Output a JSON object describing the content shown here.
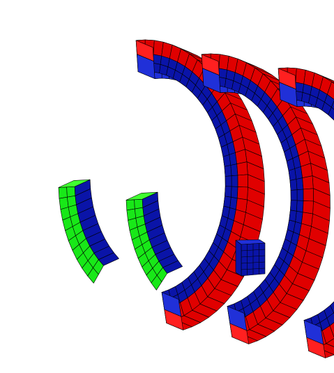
{
  "colors": {
    "background": "#ffffff",
    "red_front": "#e00000",
    "red_top": "#ff2020",
    "blue_front": "#0a14a8",
    "blue_top": "#2030d8",
    "green_front": "#18e818",
    "green_top": "#40ff30",
    "mesh_line": "#000000"
  },
  "parts": [
    {
      "name": "coil-1",
      "type": "curved-coil",
      "layers": [
        "red",
        "blue"
      ]
    },
    {
      "name": "coil-2",
      "type": "curved-coil",
      "layers": [
        "red",
        "blue"
      ]
    },
    {
      "name": "coil-3",
      "type": "curved-coil",
      "layers": [
        "red",
        "blue"
      ]
    },
    {
      "name": "spacer-1",
      "type": "wedge-spacer",
      "layers": [
        "green",
        "blue"
      ]
    },
    {
      "name": "spacer-2",
      "type": "wedge-spacer",
      "layers": [
        "green",
        "blue"
      ]
    },
    {
      "name": "support-block",
      "type": "block",
      "layers": [
        "blue"
      ]
    }
  ]
}
